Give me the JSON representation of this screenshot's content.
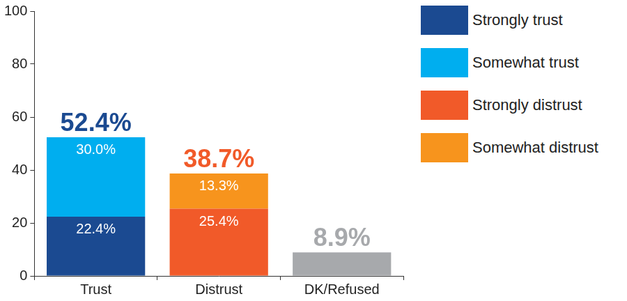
{
  "chart_data": {
    "type": "bar",
    "stacked": true,
    "data_labels": true,
    "grid": false,
    "legend": "right",
    "categories": [
      "Trust",
      "Distrust",
      "DK/Refused"
    ],
    "ylim": [
      0,
      100
    ],
    "yticks": [
      0,
      20,
      40,
      60,
      80,
      100
    ],
    "series": [
      {
        "name": "Strongly trust",
        "color": "#1b4a91",
        "values": [
          22.4,
          null,
          null
        ],
        "value_labels": [
          "22.4%",
          null,
          null
        ]
      },
      {
        "name": "Somewhat trust",
        "color": "#00aeef",
        "values": [
          30.0,
          null,
          null
        ],
        "value_labels": [
          "30.0%",
          null,
          null
        ]
      },
      {
        "name": "Strongly distrust",
        "color": "#f15a29",
        "values": [
          null,
          25.4,
          null
        ],
        "value_labels": [
          null,
          "25.4%",
          null
        ]
      },
      {
        "name": "Somewhat distrust",
        "color": "#f7941d",
        "values": [
          null,
          13.3,
          null
        ],
        "value_labels": [
          null,
          "13.3%",
          null
        ]
      },
      {
        "color": "#a7a9ac",
        "values": [
          null,
          null,
          8.9
        ]
      }
    ],
    "totals": {
      "values": [
        52.4,
        38.7,
        8.9
      ],
      "value_labels": [
        "52.4%",
        "38.7%",
        "8.9%"
      ],
      "colors": [
        "#1b4a91",
        "#f15a29",
        "#a7a9ac"
      ]
    }
  }
}
